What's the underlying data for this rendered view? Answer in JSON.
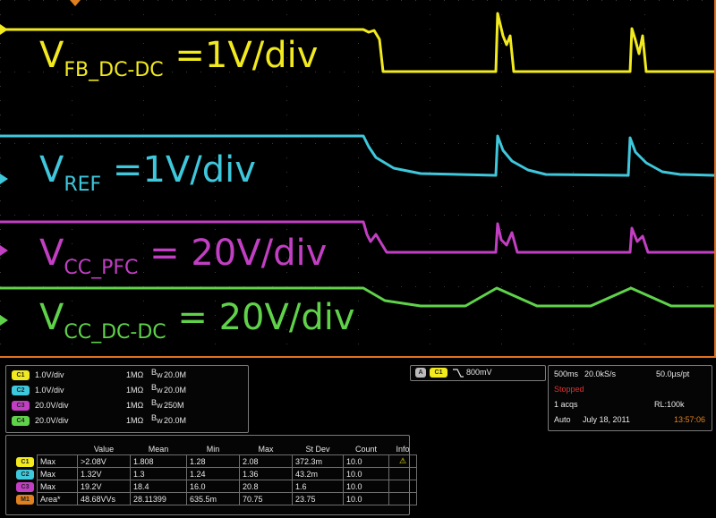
{
  "labels": {
    "ch1": {
      "main": "V",
      "sub": "FB_DC-DC",
      "rest": " =1V/div",
      "color": "#f2ea1e"
    },
    "ch2": {
      "main": "V",
      "sub": "REF",
      "rest": " =1V/div",
      "color": "#3fc7dc"
    },
    "ch3": {
      "main": "V",
      "sub": "CC_PFC",
      "rest": " = 20V/div",
      "color": "#c23fc3"
    },
    "ch4": {
      "main": "V",
      "sub": "CC_DC-DC",
      "rest": " = 20V/div",
      "color": "#5fd24a"
    }
  },
  "channels": [
    {
      "id": "C1",
      "scale": "1.0V/div",
      "impedance": "1MΩ",
      "bw": "20.0M",
      "color": "#f2ea1e"
    },
    {
      "id": "C2",
      "scale": "1.0V/div",
      "impedance": "1MΩ",
      "bw": "20.0M",
      "color": "#3fc7dc"
    },
    {
      "id": "C3",
      "scale": "20.0V/div",
      "impedance": "1MΩ",
      "bw": "250M",
      "color": "#c23fc3"
    },
    {
      "id": "C4",
      "scale": "20.0V/div",
      "impedance": "1MΩ",
      "bw": "20.0M",
      "color": "#5fd24a"
    }
  ],
  "bw_prefix": "B",
  "bw_sub": "W",
  "trigger": {
    "badge_a": "A",
    "source": "C1",
    "level": "800mV",
    "slope_icon": "falling-edge"
  },
  "acquisition": {
    "timebase": "500ms",
    "sample_rate": "20.0kS/s",
    "per_point": "50.0µs/pt",
    "state": "Stopped",
    "acqs": "1 acqs",
    "record_length": "RL:100k",
    "mode": "Auto",
    "date": "July 18, 2011",
    "time": "13:57:06"
  },
  "measurements": {
    "headers": [
      "",
      "",
      "Value",
      "Mean",
      "Min",
      "Max",
      "St Dev",
      "Count",
      "Info"
    ],
    "rows": [
      {
        "src": "C1",
        "color": "#f2ea1e",
        "type": "Max",
        "value": ">2.08V",
        "mean": "1.808",
        "min": "1.28",
        "max": "2.08",
        "stdev": "372.3m",
        "count": "10.0",
        "info": "⚠"
      },
      {
        "src": "C2",
        "color": "#3fc7dc",
        "type": "Max",
        "value": "1.32V",
        "mean": "1.3",
        "min": "1.24",
        "max": "1.36",
        "stdev": "43.2m",
        "count": "10.0",
        "info": ""
      },
      {
        "src": "C3",
        "color": "#c23fc3",
        "type": "Max",
        "value": "19.2V",
        "mean": "18.4",
        "min": "16.0",
        "max": "20.8",
        "stdev": "1.6",
        "count": "10.0",
        "info": ""
      },
      {
        "src": "M1",
        "color": "#e0801e",
        "type": "Area*",
        "value": "48.68VVs",
        "mean": "28.11399",
        "min": "635.5m",
        "max": "70.75",
        "stdev": "23.75",
        "count": "10.0",
        "info": ""
      }
    ]
  },
  "colors": {
    "ch1": "#f2ea1e",
    "ch2": "#3fc7dc",
    "ch3": "#c23fc3",
    "ch4": "#5fd24a",
    "math": "#e0801e",
    "stopped": "#e03030",
    "grid": "#3a3a3a",
    "border": "#e07020",
    "time": "#e0801e"
  }
}
